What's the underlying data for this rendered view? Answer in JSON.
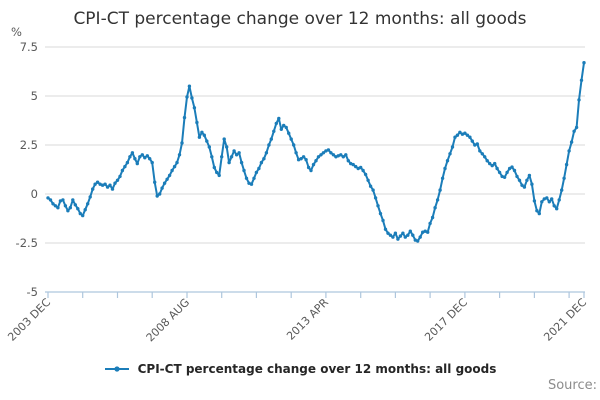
{
  "title": "CPI-CT percentage change over 12 months: all goods",
  "legend": {
    "label": "CPI-CT percentage change over 12 months: all goods"
  },
  "source_label": "Source:",
  "colors": {
    "line": "#1b7db9",
    "grid": "#d9d9d9",
    "axis": "#aec6dd",
    "tick_text": "#595959",
    "title_text": "#333333",
    "legend_text": "#262626",
    "source_text": "#8c8c8c"
  },
  "chart_data": {
    "type": "line",
    "title": "CPI-CT percentage change over 12 months: all goods",
    "ylabel": "%",
    "ylim": [
      -5,
      7.5
    ],
    "grid": "horizontal",
    "legend_position": "bottom",
    "y_ticks": [
      {
        "label": "7.5",
        "value": 7.5
      },
      {
        "label": "5",
        "value": 5
      },
      {
        "label": "2.5",
        "value": 2.5
      },
      {
        "label": "0",
        "value": 0
      },
      {
        "label": "-2.5",
        "value": -2.5
      },
      {
        "label": "-5",
        "value": -5
      }
    ],
    "x_range_months": [
      0,
      216
    ],
    "x_start": "2003 DEC",
    "x_end": "2021 DEC",
    "frequency": "monthly",
    "minor_tick_interval_months": 14,
    "x_ticks": [
      {
        "label": "2003 DEC",
        "month": 0
      },
      {
        "label": "2008 AUG",
        "month": 56
      },
      {
        "label": "2013 APR",
        "month": 112
      },
      {
        "label": "2017 DEC",
        "month": 168
      },
      {
        "label": "2021 DEC",
        "month": 216
      }
    ],
    "series": [
      {
        "name": "CPI-CT percentage change over 12 months: all goods",
        "color": "#1b7db9",
        "values": [
          -0.2,
          -0.3,
          -0.5,
          -0.6,
          -0.7,
          -0.35,
          -0.3,
          -0.6,
          -0.85,
          -0.7,
          -0.3,
          -0.55,
          -0.75,
          -1.0,
          -1.1,
          -0.8,
          -0.5,
          -0.15,
          0.25,
          0.5,
          0.6,
          0.5,
          0.45,
          0.5,
          0.35,
          0.45,
          0.25,
          0.55,
          0.7,
          0.9,
          1.2,
          1.4,
          1.6,
          1.9,
          2.1,
          1.8,
          1.55,
          1.9,
          2.0,
          1.85,
          1.95,
          1.8,
          1.6,
          0.6,
          -0.1,
          0.0,
          0.3,
          0.55,
          0.75,
          0.95,
          1.2,
          1.4,
          1.6,
          2.0,
          2.6,
          3.9,
          4.95,
          5.5,
          4.9,
          4.4,
          3.65,
          2.9,
          3.15,
          3.0,
          2.7,
          2.4,
          1.9,
          1.35,
          1.1,
          0.95,
          1.9,
          2.8,
          2.4,
          1.6,
          1.9,
          2.2,
          2.0,
          2.1,
          1.6,
          1.2,
          0.8,
          0.55,
          0.5,
          0.8,
          1.1,
          1.3,
          1.6,
          1.8,
          2.1,
          2.5,
          2.8,
          3.2,
          3.6,
          3.85,
          3.3,
          3.5,
          3.4,
          3.1,
          2.8,
          2.5,
          2.1,
          1.75,
          1.8,
          1.9,
          1.75,
          1.35,
          1.2,
          1.5,
          1.7,
          1.9,
          2.0,
          2.1,
          2.2,
          2.25,
          2.1,
          2.0,
          1.9,
          1.95,
          2.0,
          1.9,
          2.0,
          1.7,
          1.55,
          1.5,
          1.4,
          1.3,
          1.35,
          1.2,
          1.0,
          0.7,
          0.4,
          0.2,
          -0.2,
          -0.6,
          -1.0,
          -1.35,
          -1.8,
          -2.0,
          -2.1,
          -2.2,
          -2.0,
          -2.3,
          -2.15,
          -2.0,
          -2.2,
          -2.1,
          -1.9,
          -2.1,
          -2.35,
          -2.4,
          -2.2,
          -1.95,
          -1.9,
          -1.95,
          -1.5,
          -1.2,
          -0.7,
          -0.3,
          0.2,
          0.8,
          1.3,
          1.7,
          2.05,
          2.4,
          2.9,
          3.0,
          3.15,
          3.05,
          3.1,
          3.0,
          2.9,
          2.7,
          2.5,
          2.55,
          2.2,
          2.05,
          1.9,
          1.7,
          1.55,
          1.45,
          1.55,
          1.3,
          1.1,
          0.9,
          0.85,
          1.1,
          1.3,
          1.37,
          1.2,
          0.9,
          0.7,
          0.45,
          0.35,
          0.7,
          0.95,
          0.5,
          -0.35,
          -0.85,
          -1.0,
          -0.4,
          -0.25,
          -0.2,
          -0.4,
          -0.25,
          -0.6,
          -0.75,
          -0.3,
          0.2,
          0.8,
          1.5,
          2.2,
          2.65,
          3.2,
          3.4,
          4.8,
          5.8,
          6.7
        ]
      }
    ]
  }
}
